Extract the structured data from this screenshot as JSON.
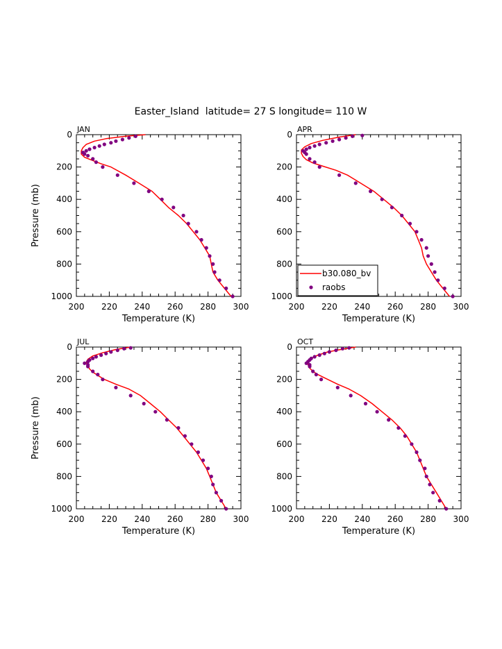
{
  "title": "Easter_Island  latitude= 27 S longitude= 110 W",
  "legend": {
    "panel": 1,
    "items": [
      {
        "label": "b30.080_bv",
        "kind": "line",
        "color": "#ff0000"
      },
      {
        "label": "raobs",
        "kind": "marker",
        "color": "#800080"
      }
    ]
  },
  "chart_data": [
    {
      "type": "line",
      "panel_label": "JAN",
      "xlabel": "Temperature (K)",
      "ylabel": "Pressure (mb)",
      "xlim": [
        200,
        300
      ],
      "ylim": [
        1000,
        0
      ],
      "xticks": [
        200,
        220,
        240,
        260,
        280,
        300
      ],
      "yticks": [
        0,
        200,
        400,
        600,
        800,
        1000
      ],
      "series": [
        {
          "name": "b30.080_bv",
          "style": "line",
          "color": "#ff0000",
          "points": [
            [
              242,
              0
            ],
            [
              230,
              10
            ],
            [
              218,
              25
            ],
            [
              211,
              40
            ],
            [
              206,
              60
            ],
            [
              204,
              80
            ],
            [
              203,
              100
            ],
            [
              203,
              120
            ],
            [
              205,
              140
            ],
            [
              210,
              160
            ],
            [
              215,
              180
            ],
            [
              221,
              200
            ],
            [
              230,
              250
            ],
            [
              238,
              300
            ],
            [
              246,
              350
            ],
            [
              251,
              400
            ],
            [
              256,
              450
            ],
            [
              262,
              500
            ],
            [
              267,
              550
            ],
            [
              271,
              600
            ],
            [
              275,
              650
            ],
            [
              278,
              700
            ],
            [
              281,
              750
            ],
            [
              282,
              800
            ],
            [
              283,
              850
            ],
            [
              286,
              900
            ],
            [
              290,
              950
            ],
            [
              294,
              1000
            ]
          ]
        },
        {
          "name": "raobs",
          "style": "marker",
          "color": "#800080",
          "points": [
            [
              236,
              10
            ],
            [
              232,
              20
            ],
            [
              228,
              30
            ],
            [
              224,
              40
            ],
            [
              221,
              50
            ],
            [
              217,
              60
            ],
            [
              214,
              70
            ],
            [
              211,
              80
            ],
            [
              208,
              90
            ],
            [
              206,
              100
            ],
            [
              204,
              110
            ],
            [
              205,
              120
            ],
            [
              207,
              130
            ],
            [
              210,
              150
            ],
            [
              212,
              170
            ],
            [
              216,
              200
            ],
            [
              225,
              250
            ],
            [
              235,
              300
            ],
            [
              244,
              350
            ],
            [
              252,
              400
            ],
            [
              259,
              450
            ],
            [
              265,
              500
            ],
            [
              268,
              550
            ],
            [
              273,
              600
            ],
            [
              276,
              650
            ],
            [
              279,
              700
            ],
            [
              281,
              750
            ],
            [
              283,
              800
            ],
            [
              284,
              850
            ],
            [
              287,
              900
            ],
            [
              291,
              950
            ],
            [
              295,
              1000
            ]
          ]
        }
      ]
    },
    {
      "type": "line",
      "panel_label": "APR",
      "xlabel": "Temperature (K)",
      "ylabel": "",
      "xlim": [
        200,
        300
      ],
      "ylim": [
        1000,
        0
      ],
      "xticks": [
        200,
        220,
        240,
        260,
        280,
        300
      ],
      "yticks": [
        0,
        200,
        400,
        600,
        800,
        1000
      ],
      "series": [
        {
          "name": "b30.080_bv",
          "style": "line",
          "color": "#ff0000",
          "points": [
            [
              236,
              0
            ],
            [
              226,
              15
            ],
            [
              216,
              35
            ],
            [
              209,
              55
            ],
            [
              205,
              75
            ],
            [
              203,
              95
            ],
            [
              203,
              115
            ],
            [
              204,
              135
            ],
            [
              206,
              155
            ],
            [
              210,
              175
            ],
            [
              216,
              195
            ],
            [
              224,
              220
            ],
            [
              231,
              250
            ],
            [
              239,
              300
            ],
            [
              247,
              350
            ],
            [
              253,
              400
            ],
            [
              259,
              450
            ],
            [
              264,
              500
            ],
            [
              268,
              550
            ],
            [
              272,
              600
            ],
            [
              274,
              650
            ],
            [
              276,
              700
            ],
            [
              277,
              750
            ],
            [
              279,
              800
            ],
            [
              282,
              850
            ],
            [
              285,
              900
            ],
            [
              289,
              950
            ],
            [
              293,
              1000
            ]
          ]
        },
        {
          "name": "raobs",
          "style": "marker",
          "color": "#800080",
          "points": [
            [
              240,
              5
            ],
            [
              234,
              10
            ],
            [
              230,
              20
            ],
            [
              226,
              30
            ],
            [
              222,
              40
            ],
            [
              218,
              50
            ],
            [
              214,
              60
            ],
            [
              211,
              70
            ],
            [
              208,
              80
            ],
            [
              206,
              90
            ],
            [
              204,
              100
            ],
            [
              205,
              110
            ],
            [
              206,
              120
            ],
            [
              208,
              150
            ],
            [
              211,
              170
            ],
            [
              214,
              200
            ],
            [
              226,
              250
            ],
            [
              236,
              300
            ],
            [
              245,
              350
            ],
            [
              252,
              400
            ],
            [
              258,
              450
            ],
            [
              264,
              500
            ],
            [
              269,
              550
            ],
            [
              273,
              600
            ],
            [
              276,
              650
            ],
            [
              279,
              700
            ],
            [
              280,
              750
            ],
            [
              282,
              800
            ],
            [
              284,
              850
            ],
            [
              286,
              900
            ],
            [
              290,
              950
            ],
            [
              295,
              1000
            ]
          ]
        }
      ]
    },
    {
      "type": "line",
      "panel_label": "JUL",
      "xlabel": "Temperature (K)",
      "ylabel": "Pressure (mb)",
      "xlim": [
        200,
        300
      ],
      "ylim": [
        1000,
        0
      ],
      "xticks": [
        200,
        220,
        240,
        260,
        280,
        300
      ],
      "yticks": [
        0,
        200,
        400,
        600,
        800,
        1000
      ],
      "series": [
        {
          "name": "b30.080_bv",
          "style": "line",
          "color": "#ff0000",
          "points": [
            [
              233,
              0
            ],
            [
              224,
              15
            ],
            [
              216,
              35
            ],
            [
              210,
              55
            ],
            [
              207,
              75
            ],
            [
              206,
              95
            ],
            [
              207,
              115
            ],
            [
              208,
              135
            ],
            [
              210,
              155
            ],
            [
              213,
              175
            ],
            [
              217,
              200
            ],
            [
              224,
              230
            ],
            [
              232,
              260
            ],
            [
              239,
              300
            ],
            [
              245,
              350
            ],
            [
              251,
              400
            ],
            [
              256,
              450
            ],
            [
              261,
              500
            ],
            [
              265,
              550
            ],
            [
              269,
              600
            ],
            [
              273,
              650
            ],
            [
              276,
              700
            ],
            [
              279,
              750
            ],
            [
              281,
              800
            ],
            [
              283,
              850
            ],
            [
              285,
              900
            ],
            [
              288,
              950
            ],
            [
              291,
              1000
            ]
          ]
        },
        {
          "name": "raobs",
          "style": "marker",
          "color": "#800080",
          "points": [
            [
              233,
              5
            ],
            [
              229,
              10
            ],
            [
              225,
              20
            ],
            [
              221,
              30
            ],
            [
              218,
              40
            ],
            [
              215,
              50
            ],
            [
              212,
              60
            ],
            [
              210,
              70
            ],
            [
              208,
              80
            ],
            [
              207,
              90
            ],
            [
              205,
              100
            ],
            [
              207,
              110
            ],
            [
              207,
              120
            ],
            [
              210,
              150
            ],
            [
              213,
              170
            ],
            [
              216,
              200
            ],
            [
              224,
              250
            ],
            [
              233,
              300
            ],
            [
              241,
              350
            ],
            [
              248,
              400
            ],
            [
              255,
              450
            ],
            [
              262,
              500
            ],
            [
              266,
              550
            ],
            [
              270,
              600
            ],
            [
              274,
              650
            ],
            [
              277,
              700
            ],
            [
              280,
              750
            ],
            [
              282,
              800
            ],
            [
              283,
              850
            ],
            [
              285,
              900
            ],
            [
              288,
              950
            ],
            [
              291,
              1000
            ]
          ]
        }
      ]
    },
    {
      "type": "line",
      "panel_label": "OCT",
      "xlabel": "Temperature (K)",
      "ylabel": "",
      "xlim": [
        200,
        300
      ],
      "ylim": [
        1000,
        0
      ],
      "xticks": [
        200,
        220,
        240,
        260,
        280,
        300
      ],
      "yticks": [
        0,
        200,
        400,
        600,
        800,
        1000
      ],
      "series": [
        {
          "name": "b30.080_bv",
          "style": "line",
          "color": "#ff0000",
          "points": [
            [
              236,
              0
            ],
            [
              227,
              15
            ],
            [
              219,
              30
            ],
            [
              213,
              50
            ],
            [
              209,
              70
            ],
            [
              207,
              90
            ],
            [
              207,
              110
            ],
            [
              208,
              130
            ],
            [
              210,
              150
            ],
            [
              213,
              170
            ],
            [
              217,
              190
            ],
            [
              221,
              210
            ],
            [
              225,
              230
            ],
            [
              232,
              260
            ],
            [
              239,
              300
            ],
            [
              246,
              350
            ],
            [
              252,
              400
            ],
            [
              258,
              450
            ],
            [
              263,
              500
            ],
            [
              267,
              550
            ],
            [
              270,
              600
            ],
            [
              273,
              650
            ],
            [
              275,
              700
            ],
            [
              277,
              750
            ],
            [
              279,
              800
            ],
            [
              282,
              850
            ],
            [
              285,
              900
            ],
            [
              288,
              950
            ],
            [
              291,
              1000
            ]
          ]
        },
        {
          "name": "raobs",
          "style": "marker",
          "color": "#800080",
          "points": [
            [
              232,
              5
            ],
            [
              228,
              10
            ],
            [
              224,
              20
            ],
            [
              220,
              30
            ],
            [
              217,
              40
            ],
            [
              214,
              50
            ],
            [
              211,
              60
            ],
            [
              209,
              70
            ],
            [
              208,
              80
            ],
            [
              207,
              90
            ],
            [
              206,
              100
            ],
            [
              208,
              110
            ],
            [
              208,
              120
            ],
            [
              210,
              150
            ],
            [
              212,
              170
            ],
            [
              215,
              200
            ],
            [
              225,
              250
            ],
            [
              233,
              300
            ],
            [
              242,
              350
            ],
            [
              249,
              400
            ],
            [
              256,
              450
            ],
            [
              262,
              500
            ],
            [
              266,
              550
            ],
            [
              270,
              600
            ],
            [
              273,
              650
            ],
            [
              275,
              700
            ],
            [
              278,
              750
            ],
            [
              279,
              800
            ],
            [
              281,
              850
            ],
            [
              283,
              900
            ],
            [
              287,
              950
            ],
            [
              291,
              1000
            ]
          ]
        }
      ]
    }
  ]
}
